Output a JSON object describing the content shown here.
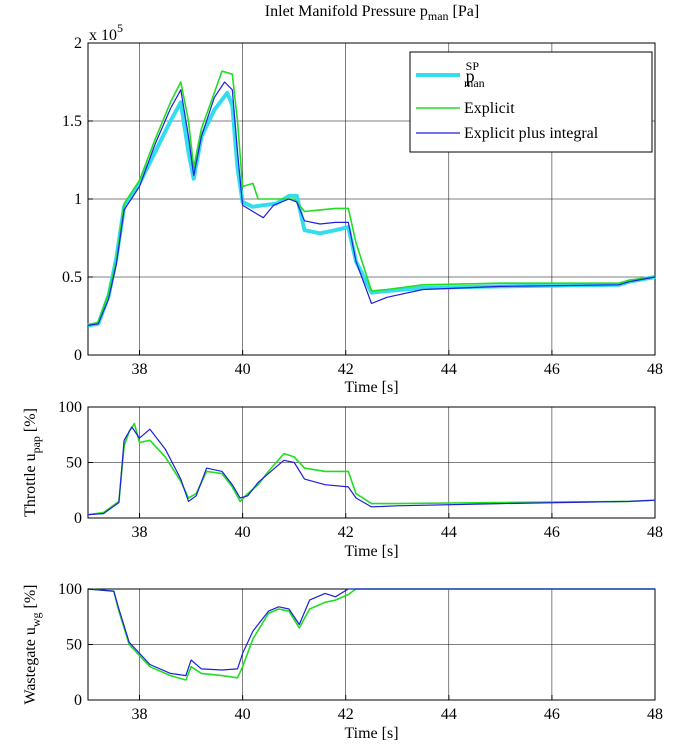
{
  "chart_data": [
    {
      "type": "line",
      "title": "Inlet Manifold Pressure",
      "title_symbol": "p",
      "title_sub": "man",
      "title_unit": "[Pa]",
      "xlabel": "Time [s]",
      "ylabel": "",
      "xlim": [
        37,
        48
      ],
      "ylim": [
        0,
        200000
      ],
      "y_multiplier": "x 10",
      "y_exponent": "5",
      "xticks": [
        "38",
        "40",
        "42",
        "44",
        "46",
        "48"
      ],
      "yticks": [
        "0",
        "0.5",
        "1",
        "1.5",
        "2"
      ],
      "ytick_values": [
        0,
        50000,
        100000,
        150000,
        200000
      ],
      "grid": true,
      "legend_position": "top-right",
      "series": [
        {
          "name": "p",
          "name_sub": "man",
          "name_sup": "SP",
          "color": "#33DDEE",
          "width": 4,
          "points": [
            [
              37,
              19000
            ],
            [
              37.2,
              20000
            ],
            [
              37.4,
              38000
            ],
            [
              37.55,
              62000
            ],
            [
              37.7,
              95000
            ],
            [
              38.0,
              110000
            ],
            [
              38.3,
              130000
            ],
            [
              38.6,
              150000
            ],
            [
              38.8,
              162000
            ],
            [
              38.95,
              130000
            ],
            [
              39.05,
              113000
            ],
            [
              39.2,
              140000
            ],
            [
              39.45,
              157000
            ],
            [
              39.7,
              168000
            ],
            [
              39.8,
              160000
            ],
            [
              39.9,
              120000
            ],
            [
              40.0,
              98000
            ],
            [
              40.2,
              95000
            ],
            [
              40.4,
              96000
            ],
            [
              40.65,
              97000
            ],
            [
              40.9,
              102000
            ],
            [
              41.05,
              102000
            ],
            [
              41.2,
              80000
            ],
            [
              41.5,
              78000
            ],
            [
              41.8,
              80000
            ],
            [
              42.05,
              82000
            ],
            [
              42.2,
              60000
            ],
            [
              42.5,
              40000
            ],
            [
              42.8,
              41000
            ],
            [
              43.5,
              43000
            ],
            [
              45,
              44000
            ],
            [
              47.3,
              45000
            ],
            [
              47.5,
              47000
            ],
            [
              48,
              50000
            ]
          ]
        },
        {
          "name": "Explicit",
          "color": "#22DD22",
          "width": 1.6,
          "points": [
            [
              37,
              19000
            ],
            [
              37.2,
              21000
            ],
            [
              37.4,
              40000
            ],
            [
              37.55,
              60000
            ],
            [
              37.7,
              97000
            ],
            [
              38.0,
              112000
            ],
            [
              38.3,
              138000
            ],
            [
              38.6,
              162000
            ],
            [
              38.8,
              175000
            ],
            [
              38.95,
              150000
            ],
            [
              39.05,
              120000
            ],
            [
              39.2,
              145000
            ],
            [
              39.45,
              168000
            ],
            [
              39.6,
              182000
            ],
            [
              39.8,
              180000
            ],
            [
              39.9,
              150000
            ],
            [
              40.0,
              108000
            ],
            [
              40.2,
              110000
            ],
            [
              40.3,
              100000
            ],
            [
              40.5,
              100000
            ],
            [
              40.8,
              100000
            ],
            [
              41.0,
              100000
            ],
            [
              41.2,
              92000
            ],
            [
              41.5,
              93000
            ],
            [
              41.8,
              94000
            ],
            [
              42.05,
              94000
            ],
            [
              42.2,
              72000
            ],
            [
              42.5,
              41000
            ],
            [
              42.8,
              42000
            ],
            [
              43.5,
              45000
            ],
            [
              45,
              46000
            ],
            [
              47.3,
              46000
            ],
            [
              47.5,
              48000
            ],
            [
              48,
              50000
            ]
          ]
        },
        {
          "name": "Explicit plus integral",
          "color": "#1F1FDD",
          "width": 1.2,
          "points": [
            [
              37,
              19000
            ],
            [
              37.2,
              20000
            ],
            [
              37.4,
              36000
            ],
            [
              37.55,
              58000
            ],
            [
              37.7,
              93000
            ],
            [
              38.0,
              108000
            ],
            [
              38.3,
              135000
            ],
            [
              38.6,
              158000
            ],
            [
              38.8,
              170000
            ],
            [
              38.95,
              140000
            ],
            [
              39.05,
              115000
            ],
            [
              39.2,
              140000
            ],
            [
              39.45,
              165000
            ],
            [
              39.65,
              175000
            ],
            [
              39.8,
              170000
            ],
            [
              39.9,
              130000
            ],
            [
              40.0,
              96000
            ],
            [
              40.2,
              92000
            ],
            [
              40.4,
              88000
            ],
            [
              40.6,
              96000
            ],
            [
              40.9,
              100000
            ],
            [
              41.05,
              98000
            ],
            [
              41.2,
              86000
            ],
            [
              41.5,
              84000
            ],
            [
              41.8,
              85000
            ],
            [
              42.05,
              85000
            ],
            [
              42.2,
              60000
            ],
            [
              42.5,
              33000
            ],
            [
              42.8,
              37000
            ],
            [
              43.5,
              42000
            ],
            [
              45,
              44000
            ],
            [
              47.3,
              45000
            ],
            [
              47.5,
              47000
            ],
            [
              48,
              50000
            ]
          ]
        }
      ]
    },
    {
      "type": "line",
      "title": "",
      "xlabel": "Time [s]",
      "ylabel": "Throttle u",
      "ylabel_sub": "pap",
      "ylabel_unit": "[%]",
      "xlim": [
        37,
        48
      ],
      "ylim": [
        0,
        100
      ],
      "xticks": [
        "38",
        "40",
        "42",
        "44",
        "46",
        "48"
      ],
      "yticks": [
        "0",
        "50",
        "100"
      ],
      "ytick_values": [
        0,
        50,
        100
      ],
      "grid": true,
      "series": [
        {
          "color": "#22DD22",
          "width": 1.6,
          "points": [
            [
              37,
              3
            ],
            [
              37.3,
              5
            ],
            [
              37.6,
              15
            ],
            [
              37.7,
              65
            ],
            [
              37.8,
              78
            ],
            [
              37.9,
              85
            ],
            [
              38.0,
              68
            ],
            [
              38.2,
              70
            ],
            [
              38.5,
              55
            ],
            [
              38.8,
              33
            ],
            [
              38.95,
              18
            ],
            [
              39.1,
              22
            ],
            [
              39.3,
              42
            ],
            [
              39.6,
              40
            ],
            [
              39.8,
              28
            ],
            [
              39.95,
              15
            ],
            [
              40.1,
              22
            ],
            [
              40.3,
              30
            ],
            [
              40.5,
              42
            ],
            [
              40.8,
              58
            ],
            [
              41.0,
              55
            ],
            [
              41.2,
              45
            ],
            [
              41.6,
              42
            ],
            [
              42.05,
              42
            ],
            [
              42.2,
              22
            ],
            [
              42.5,
              13
            ],
            [
              43,
              13
            ],
            [
              45,
              14
            ],
            [
              47.5,
              15
            ],
            [
              48,
              16
            ]
          ]
        },
        {
          "color": "#1F1FDD",
          "width": 1.2,
          "points": [
            [
              37,
              3
            ],
            [
              37.3,
              4
            ],
            [
              37.6,
              14
            ],
            [
              37.7,
              70
            ],
            [
              37.85,
              82
            ],
            [
              38.0,
              72
            ],
            [
              38.2,
              80
            ],
            [
              38.5,
              62
            ],
            [
              38.8,
              35
            ],
            [
              38.95,
              15
            ],
            [
              39.1,
              20
            ],
            [
              39.3,
              45
            ],
            [
              39.6,
              42
            ],
            [
              39.8,
              30
            ],
            [
              39.95,
              18
            ],
            [
              40.1,
              20
            ],
            [
              40.3,
              32
            ],
            [
              40.5,
              40
            ],
            [
              40.8,
              52
            ],
            [
              41.0,
              50
            ],
            [
              41.2,
              35
            ],
            [
              41.6,
              30
            ],
            [
              42.05,
              28
            ],
            [
              42.2,
              18
            ],
            [
              42.5,
              10
            ],
            [
              43,
              11
            ],
            [
              45,
              13
            ],
            [
              47.5,
              15
            ],
            [
              48,
              16
            ]
          ]
        }
      ]
    },
    {
      "type": "line",
      "title": "",
      "xlabel": "Time [s]",
      "ylabel": "Wastegate u",
      "ylabel_sub": "wg",
      "ylabel_unit": "[%]",
      "xlim": [
        37,
        48
      ],
      "ylim": [
        0,
        100
      ],
      "xticks": [
        "38",
        "40",
        "42",
        "44",
        "46",
        "48"
      ],
      "yticks": [
        "0",
        "50",
        "100"
      ],
      "ytick_values": [
        0,
        50,
        100
      ],
      "grid": true,
      "series": [
        {
          "color": "#22DD22",
          "width": 1.6,
          "points": [
            [
              37,
              100
            ],
            [
              37.5,
              98
            ],
            [
              37.6,
              80
            ],
            [
              37.8,
              50
            ],
            [
              38.2,
              30
            ],
            [
              38.6,
              22
            ],
            [
              38.9,
              18
            ],
            [
              39.0,
              30
            ],
            [
              39.2,
              24
            ],
            [
              39.6,
              22
            ],
            [
              39.9,
              20
            ],
            [
              40.0,
              30
            ],
            [
              40.2,
              55
            ],
            [
              40.5,
              78
            ],
            [
              40.7,
              82
            ],
            [
              40.9,
              80
            ],
            [
              41.1,
              65
            ],
            [
              41.3,
              82
            ],
            [
              41.6,
              88
            ],
            [
              41.8,
              90
            ],
            [
              42.05,
              95
            ],
            [
              42.2,
              100
            ],
            [
              48,
              100
            ]
          ]
        },
        {
          "color": "#1F1FDD",
          "width": 1.2,
          "points": [
            [
              37,
              100
            ],
            [
              37.5,
              98
            ],
            [
              37.6,
              82
            ],
            [
              37.8,
              52
            ],
            [
              38.2,
              32
            ],
            [
              38.6,
              24
            ],
            [
              38.9,
              22
            ],
            [
              39.0,
              36
            ],
            [
              39.2,
              28
            ],
            [
              39.6,
              27
            ],
            [
              39.9,
              28
            ],
            [
              40.0,
              42
            ],
            [
              40.2,
              62
            ],
            [
              40.5,
              80
            ],
            [
              40.7,
              84
            ],
            [
              40.9,
              82
            ],
            [
              41.1,
              68
            ],
            [
              41.3,
              90
            ],
            [
              41.6,
              96
            ],
            [
              41.8,
              93
            ],
            [
              42.05,
              100
            ],
            [
              48,
              100
            ]
          ]
        }
      ]
    }
  ]
}
